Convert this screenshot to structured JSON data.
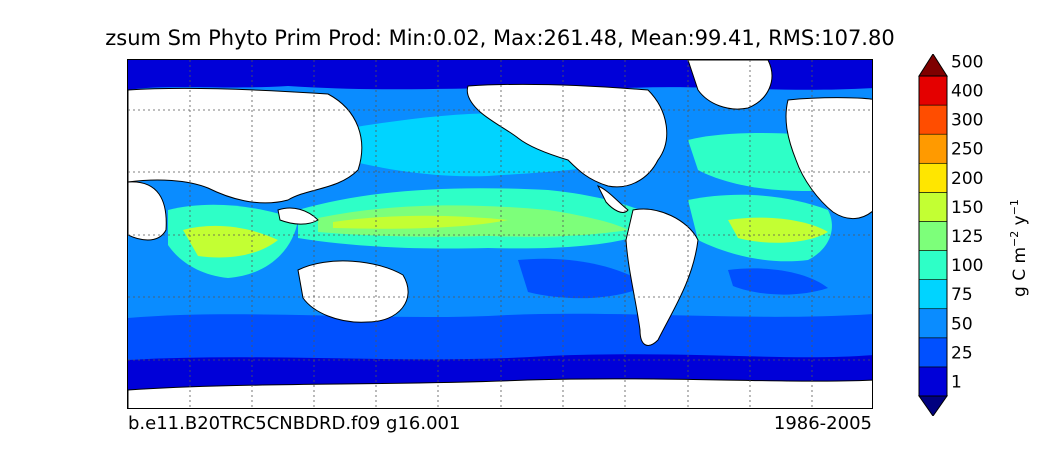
{
  "title": "zsum Sm Phyto Prim Prod: Min:0.02, Max:261.48, Mean:99.41, RMS:107.80",
  "footer": {
    "case_name": "b.e11.B20TRC5CNBDRD.f09 g16.001",
    "years": "1986-2005"
  },
  "colorbar": {
    "label_main": "g C m",
    "label_sup1": "−2",
    "label_mid": " y",
    "label_sup2": "−1",
    "levels": [
      "1",
      "25",
      "50",
      "75",
      "100",
      "125",
      "150",
      "200",
      "250",
      "300",
      "400",
      "500"
    ],
    "colors": [
      "#00007f",
      "#0000d8",
      "#0050ff",
      "#0a8cff",
      "#00d4ff",
      "#2effc7",
      "#7dff7a",
      "#c3ff33",
      "#ffe600",
      "#ff9a00",
      "#ff4d00",
      "#e40000",
      "#7f0000"
    ]
  },
  "map": {
    "land_color": "#ffffff",
    "coast_color": "#000000",
    "grid": true
  }
}
